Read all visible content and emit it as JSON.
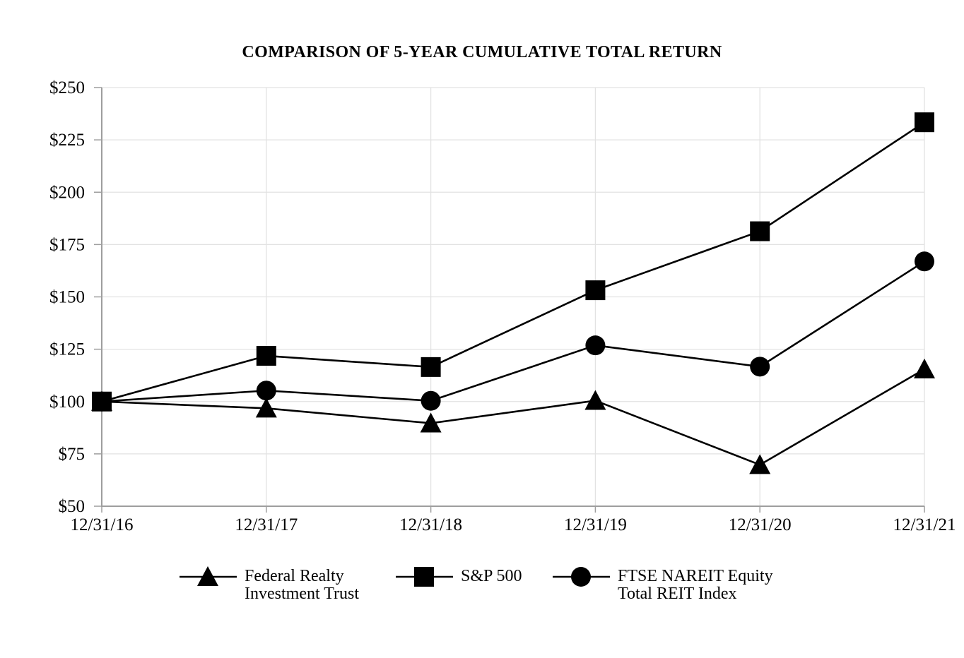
{
  "chart_data": {
    "type": "line",
    "title": "COMPARISON OF 5-YEAR CUMULATIVE TOTAL RETURN",
    "xlabel": "",
    "ylabel": "",
    "x_labels": [
      "12/31/16",
      "12/31/17",
      "12/31/18",
      "12/31/19",
      "12/31/20",
      "12/31/21"
    ],
    "ylim": [
      50,
      250
    ],
    "y_ticks": [
      {
        "label": "$250",
        "value": 250
      },
      {
        "label": "$225",
        "value": 225
      },
      {
        "label": "$200",
        "value": 200
      },
      {
        "label": "$175",
        "value": 175
      },
      {
        "label": "$150",
        "value": 150
      },
      {
        "label": "$125",
        "value": 125
      },
      {
        "label": "$100",
        "value": 100
      },
      {
        "label": "$75",
        "value": 75
      },
      {
        "label": "$50",
        "value": 50
      }
    ],
    "grid": true,
    "legend_position": "bottom",
    "draw_order": [
      0,
      2,
      1
    ],
    "series": [
      {
        "name": "Federal Realty Investment Trust",
        "marker": "triangle",
        "color": "#000000",
        "values": [
          100.0,
          96.76,
          89.64,
          100.44,
          69.79,
          115.46
        ]
      },
      {
        "name": "S&P 500",
        "marker": "square",
        "color": "#000000",
        "values": [
          100.0,
          121.83,
          116.49,
          153.17,
          181.35,
          233.41
        ]
      },
      {
        "name": "FTSE NAREIT Equity Total REIT Index",
        "marker": "circle",
        "color": "#000000",
        "values": [
          100.0,
          105.23,
          100.35,
          126.84,
          116.67,
          166.93
        ]
      }
    ]
  },
  "legend": {
    "entries": [
      {
        "line1": "Federal Realty",
        "line2": "Investment Trust",
        "marker": "triangle"
      },
      {
        "line1": "S&P 500",
        "line2": "",
        "marker": "square"
      },
      {
        "line1": "FTSE NAREIT Equity",
        "line2": "Total REIT Index",
        "marker": "circle"
      }
    ]
  },
  "colors": {
    "background": "#FFFFFF",
    "text": "#000000",
    "series": "#000000",
    "gridline": "#E2E2E2",
    "axis": "#9E9E9E"
  }
}
